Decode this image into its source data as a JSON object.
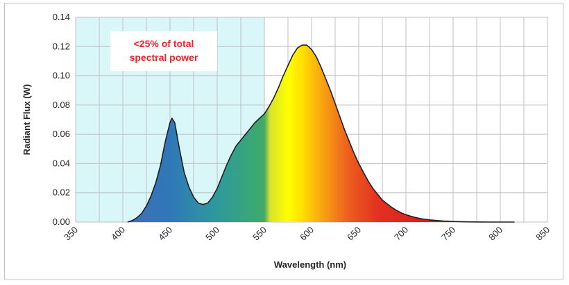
{
  "chart_data": {
    "type": "area",
    "title": "",
    "xlabel": "Wavelength (nm)",
    "ylabel": "Radiant Flux (W)",
    "xlim": [
      350,
      850
    ],
    "ylim": [
      0,
      0.14
    ],
    "x_ticks": [
      "350",
      "400",
      "450",
      "500",
      "550",
      "600",
      "650",
      "700",
      "750",
      "800",
      "850"
    ],
    "y_ticks": [
      "0.00",
      "0.02",
      "0.04",
      "0.06",
      "0.08",
      "0.10",
      "0.12",
      "0.14"
    ],
    "grid": true,
    "shaded_region": {
      "x_start": 350,
      "x_end": 550,
      "color": "#d9f7f9"
    },
    "annotation": {
      "lines": [
        "<25% of total",
        "spectral power"
      ],
      "color": "#e8262a"
    },
    "series": [
      {
        "x": [
          405,
          410,
          415,
          420,
          425,
          430,
          435,
          440,
          445,
          450,
          452,
          455,
          460,
          465,
          470,
          475,
          480,
          485,
          490,
          495,
          500,
          505,
          510,
          515,
          520,
          525,
          530,
          535,
          540,
          545,
          550,
          555,
          560,
          565,
          570,
          575,
          580,
          585,
          590,
          595,
          600,
          605,
          610,
          615,
          620,
          625,
          630,
          635,
          640,
          645,
          650,
          655,
          660,
          665,
          670,
          675,
          680,
          685,
          690,
          695,
          700,
          705,
          710,
          715,
          720,
          725,
          730,
          740,
          750,
          760,
          770,
          780,
          790,
          800,
          810,
          815
        ],
        "y": [
          0.0,
          0.001,
          0.003,
          0.006,
          0.011,
          0.018,
          0.027,
          0.039,
          0.055,
          0.068,
          0.071,
          0.068,
          0.05,
          0.034,
          0.024,
          0.017,
          0.013,
          0.012,
          0.013,
          0.017,
          0.023,
          0.031,
          0.039,
          0.046,
          0.052,
          0.056,
          0.06,
          0.064,
          0.068,
          0.071,
          0.074,
          0.079,
          0.085,
          0.092,
          0.1,
          0.107,
          0.114,
          0.119,
          0.121,
          0.121,
          0.118,
          0.113,
          0.106,
          0.098,
          0.09,
          0.081,
          0.072,
          0.063,
          0.055,
          0.047,
          0.04,
          0.034,
          0.028,
          0.023,
          0.019,
          0.015,
          0.0125,
          0.01,
          0.008,
          0.0063,
          0.005,
          0.004,
          0.0031,
          0.0024,
          0.0019,
          0.0015,
          0.0012,
          0.0007,
          0.0004,
          0.0002,
          0.0001,
          5e-05,
          0.0,
          0.0,
          0.0,
          0.0
        ]
      }
    ],
    "colors": {
      "line": "#1f1f1f",
      "grid": "#bfbfbf",
      "spectrum_stops": [
        {
          "nm": 405,
          "color": "#3f6fb6"
        },
        {
          "nm": 450,
          "color": "#2f78b8"
        },
        {
          "nm": 500,
          "color": "#2e9a9c"
        },
        {
          "nm": 540,
          "color": "#3aa873"
        },
        {
          "nm": 550,
          "color": "#44aa66"
        },
        {
          "nm": 556,
          "color": "#d8e32a"
        },
        {
          "nm": 575,
          "color": "#ffff00"
        },
        {
          "nm": 590,
          "color": "#ffe000"
        },
        {
          "nm": 610,
          "color": "#f9a712"
        },
        {
          "nm": 640,
          "color": "#ec5c1f"
        },
        {
          "nm": 670,
          "color": "#e3311f"
        },
        {
          "nm": 720,
          "color": "#dc1f1f"
        },
        {
          "nm": 815,
          "color": "#d41a1a"
        }
      ]
    }
  }
}
